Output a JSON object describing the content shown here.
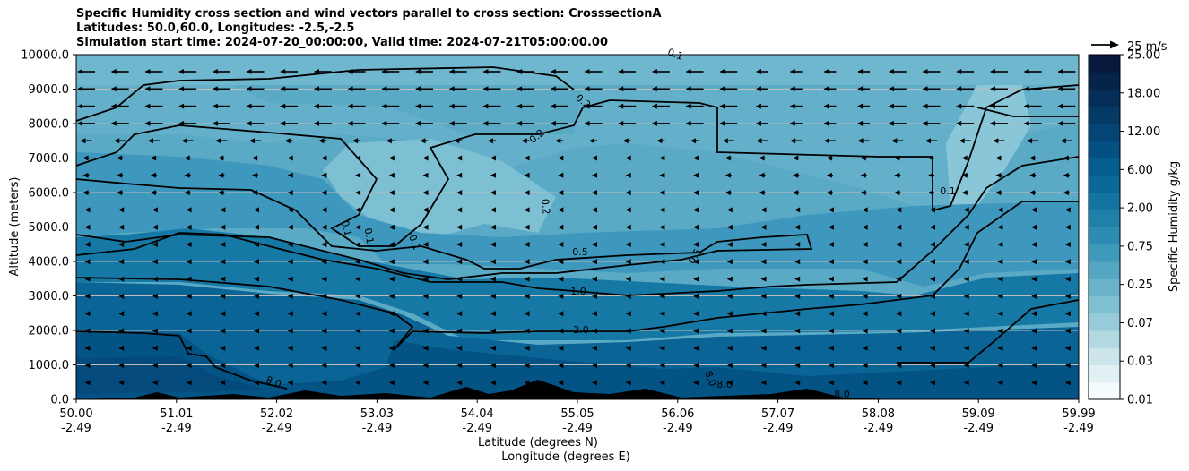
{
  "chart_data": {
    "type": "contour",
    "title_lines": [
      "Specific Humidity cross section and wind vectors parallel to cross section: CrosssectionA",
      "Latitudes: 50.0,60.0, Longitudes: -2.5,-2.5",
      "Simulation start time: 2024-07-20_00:00:00, Valid time: 2024-07-21T05:00:00.00"
    ],
    "ylabel": "Altitude (meters)",
    "xlabel_lat": "Latitude (degrees N)",
    "xlabel_lon": "Longitude (degrees E)",
    "ylim": [
      0,
      10000
    ],
    "y_ticks": [
      "0.0",
      "1000.0",
      "2000.0",
      "3000.0",
      "4000.0",
      "5000.0",
      "6000.0",
      "7000.0",
      "8000.0",
      "9000.0",
      "10000.0"
    ],
    "x_ticks_lat": [
      "50.00",
      "51.01",
      "52.02",
      "53.03",
      "54.04",
      "55.05",
      "56.06",
      "57.07",
      "58.08",
      "59.09",
      "59.99"
    ],
    "x_ticks_lon": [
      "-2.49",
      "-2.49",
      "-2.49",
      "-2.49",
      "-2.49",
      "-2.49",
      "-2.49",
      "-2.49",
      "-2.49",
      "-2.49",
      "-2.49"
    ],
    "colorbar": {
      "label": "Specific Humidity g/kg",
      "tick_labels": [
        "0.01",
        "0.03",
        "0.07",
        "0.25",
        "0.75",
        "2.00",
        "6.00",
        "12.00",
        "18.00",
        "25.00"
      ],
      "colors": [
        "#f4fbfc",
        "#e1f0f3",
        "#cbe5eb",
        "#b2d8e2",
        "#97cbd9",
        "#7ebfd2",
        "#69b2ca",
        "#54a6c2",
        "#3f99bb",
        "#2e8cb2",
        "#1f80aa",
        "#1374a1",
        "#0a6899",
        "#055c8f",
        "#045083",
        "#044575",
        "#053a67",
        "#052f58",
        "#06244a",
        "#06183c"
      ]
    },
    "reference_vector_label": "25 m/s",
    "contour_labels": [
      "0.1",
      "0.1",
      "0.1",
      "0.1",
      "0.1",
      "0.2",
      "0.2",
      "0.2",
      "0.5",
      "0.5",
      "1.0",
      "2.0",
      "8.0",
      "8.0",
      "8.0",
      "8.0"
    ],
    "wind": "predominantly northerly (pointing toward decreasing latitude), strongest 8000-10000 m"
  }
}
